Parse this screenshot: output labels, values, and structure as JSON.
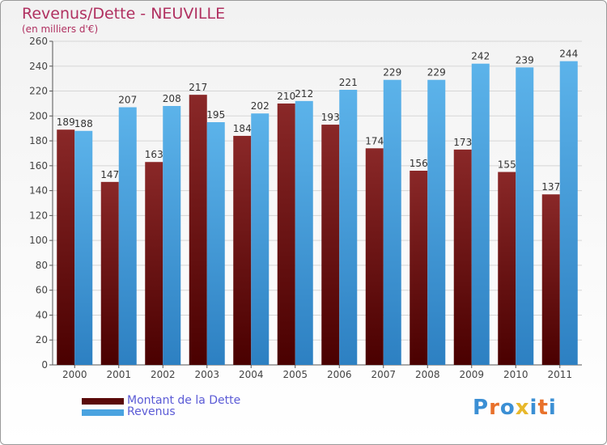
{
  "title": "Revenus/Dette - NEUVILLE",
  "subtitle": "(en milliers d'€)",
  "colors": {
    "debt": "#7a1a1a",
    "debt_dark": "#4a0000",
    "revenue": "#56aee6",
    "revenue_dark": "#2d7fc0",
    "title": "#b03060"
  },
  "chart_data": {
    "type": "bar",
    "categories": [
      "2000",
      "2001",
      "2002",
      "2003",
      "2004",
      "2005",
      "2006",
      "2007",
      "2008",
      "2009",
      "2010",
      "2011"
    ],
    "series": [
      {
        "name": "Montant de la Dette",
        "values": [
          189,
          147,
          163,
          217,
          184,
          210,
          193,
          174,
          156,
          173,
          155,
          137
        ]
      },
      {
        "name": "Revenus",
        "values": [
          188,
          207,
          208,
          195,
          202,
          212,
          221,
          229,
          229,
          242,
          239,
          244
        ]
      }
    ],
    "ylim": [
      0,
      260
    ],
    "yticks": [
      0,
      20,
      40,
      60,
      80,
      100,
      120,
      140,
      160,
      180,
      200,
      220,
      240,
      260
    ],
    "grid": true,
    "legend": "bottom-left"
  },
  "legend": {
    "debt_label": "Montant de la Dette",
    "revenue_label": "Revenus"
  },
  "logo": {
    "text": "Proxiti",
    "letter_colors": [
      "#3b8fd4",
      "#e8712b",
      "#3b8fd4",
      "#e8b82b",
      "#3b8fd4",
      "#e8712b",
      "#3b8fd4"
    ]
  }
}
